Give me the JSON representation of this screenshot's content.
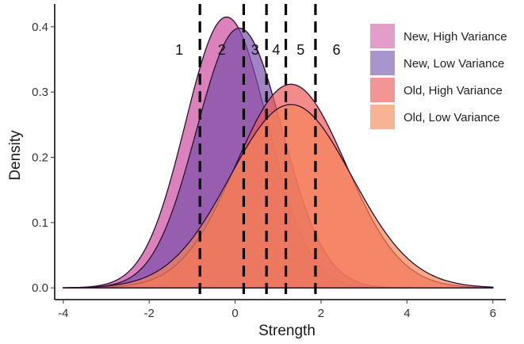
{
  "chart_data": {
    "type": "area",
    "xlabel": "Strength",
    "ylabel": "Density",
    "xlim": [
      -4.2,
      6.3
    ],
    "ylim": [
      -0.018,
      0.435
    ],
    "xticks": [
      -4,
      -2,
      0,
      2,
      4,
      6
    ],
    "xtick_labels": [
      "-4",
      "-2",
      "0",
      "2",
      "4",
      "6"
    ],
    "yticks": [
      0.0,
      0.1,
      0.2,
      0.3,
      0.4
    ],
    "ytick_labels": [
      "0.0",
      "0.1",
      "0.2",
      "0.3",
      "0.4"
    ],
    "grid": false,
    "legend_position": "top-right",
    "series": [
      {
        "name": "New, High Variance",
        "distribution": "normal",
        "mean": -0.2,
        "sd": 0.96,
        "peak_density": 0.415,
        "color": "#cc4c9f"
      },
      {
        "name": "New, Low Variance",
        "distribution": "normal",
        "mean": 0.1,
        "sd": 1.0,
        "peak_density": 0.398,
        "color": "#7b4faa"
      },
      {
        "name": "Old, High Variance",
        "distribution": "normal",
        "mean": 1.3,
        "sd": 1.28,
        "peak_density": 0.312,
        "color": "#ef5a5a"
      },
      {
        "name": "Old, Low Variance",
        "distribution": "normal",
        "mean": 1.3,
        "sd": 1.42,
        "peak_density": 0.281,
        "color": "#f58559"
      }
    ],
    "thresholds": [
      -0.82,
      0.2,
      0.73,
      1.18,
      1.87
    ],
    "regions": [
      "1",
      "2",
      "3",
      "4",
      "5",
      "6"
    ],
    "legend": [
      {
        "label": "New, High Variance",
        "swatch": "#e29dc8"
      },
      {
        "label": "New, Low Variance",
        "swatch": "#a895cc"
      },
      {
        "label": "Old, High Variance",
        "swatch": "#f39595"
      },
      {
        "label": "Old, Low Variance",
        "swatch": "#f7b394"
      }
    ]
  }
}
